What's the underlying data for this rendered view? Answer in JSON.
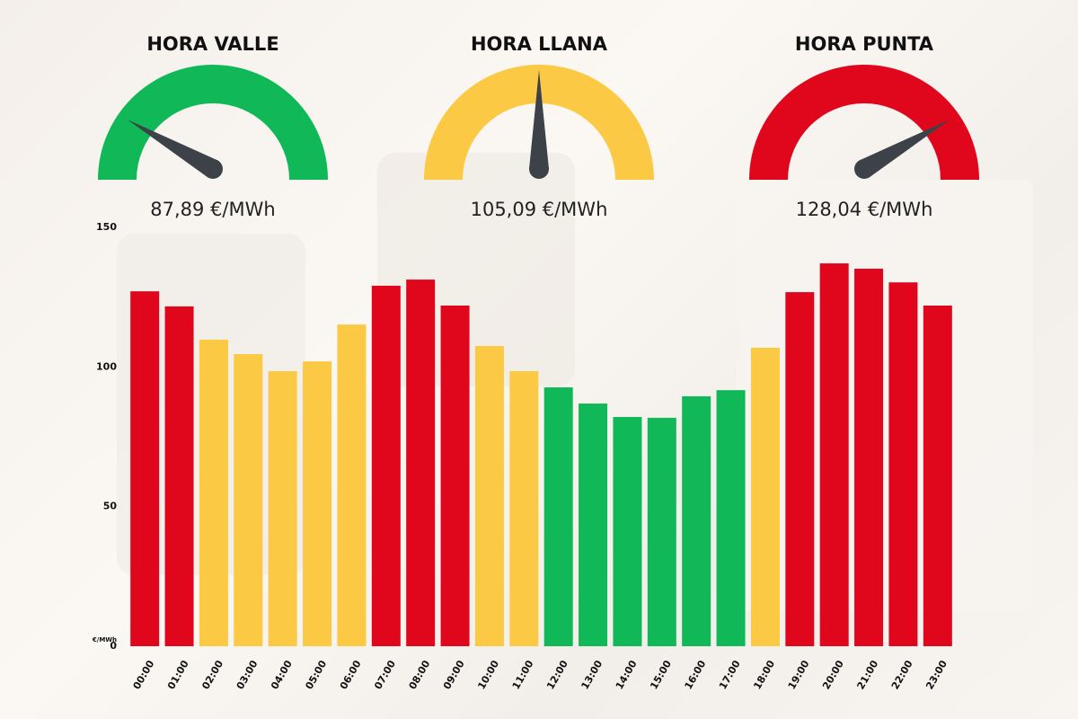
{
  "gauges": [
    {
      "title": "HORA VALLE",
      "label": "87,89 €/MWh",
      "color": "#10b857"
    },
    {
      "title": "HORA LLANA",
      "label": "105,09 €/MWh",
      "color": "#fbc943"
    },
    {
      "title": "HORA PUNTA",
      "label": "128,04 €/MWh",
      "color": "#e0061b"
    }
  ],
  "chart_data": {
    "type": "bar",
    "y_label": "€/MWh",
    "categories": [
      "00:00",
      "01:00",
      "02:00",
      "03:00",
      "04:00",
      "05:00",
      "06:00",
      "07:00",
      "08:00",
      "09:00",
      "10:00",
      "11:00",
      "12:00",
      "13:00",
      "14:00",
      "15:00",
      "16:00",
      "17:00",
      "18:00",
      "19:00",
      "20:00",
      "21:00",
      "22:00",
      "23:00"
    ],
    "values": [
      127.1,
      121.7,
      109.8,
      104.6,
      98.5,
      102.0,
      115.2,
      129.1,
      131.3,
      122.0,
      107.5,
      98.5,
      92.7,
      86.9,
      82.1,
      81.8,
      89.5,
      91.7,
      106.9,
      126.8,
      137.1,
      135.2,
      130.3,
      122.0
    ],
    "colors": [
      "#e0061b",
      "#e0061b",
      "#fbc943",
      "#fbc943",
      "#fbc943",
      "#fbc943",
      "#fbc943",
      "#e0061b",
      "#e0061b",
      "#e0061b",
      "#fbc943",
      "#fbc943",
      "#10b857",
      "#10b857",
      "#10b857",
      "#10b857",
      "#10b857",
      "#10b857",
      "#fbc943",
      "#e0061b",
      "#e0061b",
      "#e0061b",
      "#e0061b",
      "#e0061b"
    ],
    "ylim": [
      0,
      150
    ],
    "yticks": [
      0,
      50,
      100,
      150
    ],
    "grid": false
  }
}
